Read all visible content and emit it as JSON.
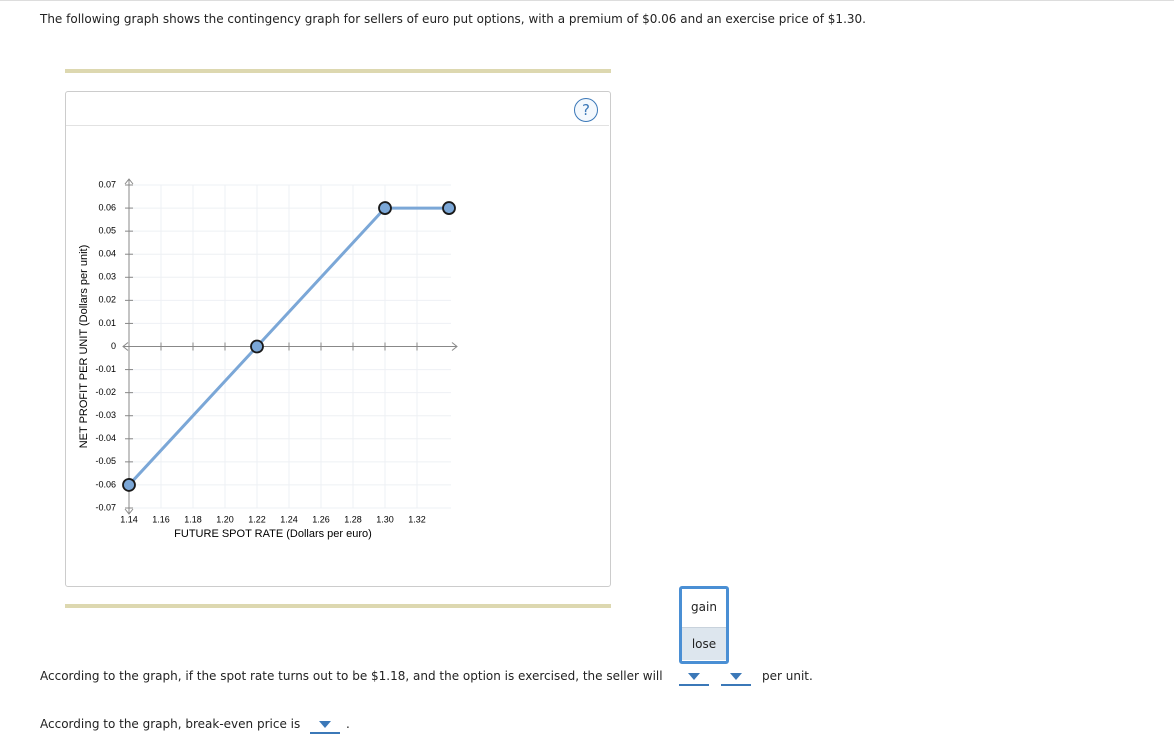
{
  "intro": "The following graph shows the contingency graph for sellers of euro put options, with a premium of $0.06 and an exercise price of $1.30.",
  "help": "?",
  "chart_data": {
    "type": "line",
    "x_label": "FUTURE SPOT RATE (Dollars per euro)",
    "y_label": "NET PROFIT PER UNIT (Dollars per unit)",
    "x": [
      1.14,
      1.22,
      1.3,
      1.34
    ],
    "series": [
      {
        "color": "#7ba7d7",
        "values": [
          -0.06,
          0,
          0.06,
          0.06
        ]
      }
    ],
    "xlim": [
      1.14,
      1.345
    ],
    "ylim": [
      -0.07,
      0.07
    ],
    "xticks": [
      1.14,
      1.16,
      1.18,
      {
        "value": 1.2,
        "label": "1.20"
      },
      1.22,
      1.24,
      1.26,
      1.28,
      {
        "value": 1.3,
        "label": "1.30"
      },
      1.32
    ],
    "yticks": [
      -0.07,
      -0.06,
      -0.05,
      -0.04,
      -0.03,
      -0.02,
      -0.01,
      0,
      0.01,
      0.02,
      0.03,
      0.04,
      0.05,
      0.06,
      0.07
    ],
    "grid": true
  },
  "dropdown_options": [
    "gain",
    "lose"
  ],
  "questions": [
    {
      "text": "According to the graph, if the spot rate turns out to be $1.18, and the option is exercised, the seller will",
      "suffix": "per unit."
    },
    {
      "text": "According to the graph, break-even price is",
      "suffix": "."
    }
  ]
}
